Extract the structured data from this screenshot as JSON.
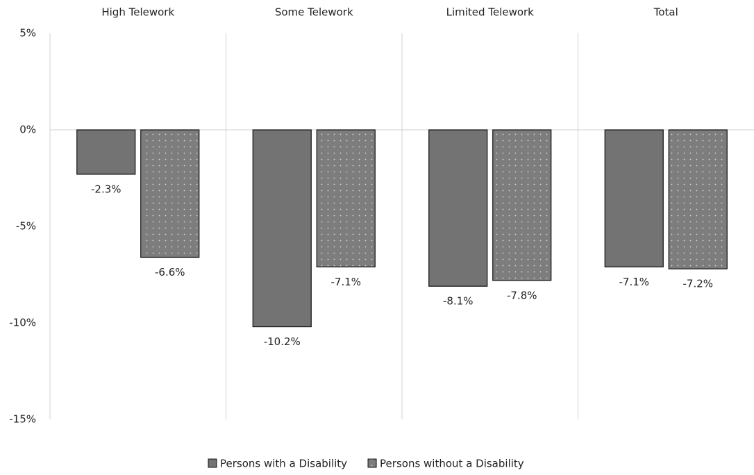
{
  "chart_data": {
    "type": "bar",
    "categories": [
      "High Telework",
      "Some Telework",
      "Limited Telework",
      "Total"
    ],
    "series": [
      {
        "name": "Persons with a Disability",
        "color": "#737373",
        "values": [
          -2.3,
          -10.2,
          -8.1,
          -7.1
        ],
        "value_labels": [
          "-2.3%",
          "-10.2%",
          "-8.1%",
          "-7.1%"
        ]
      },
      {
        "name": "Persons without a Disability",
        "color": "#7d7d7d",
        "pattern": "dots",
        "values": [
          -6.6,
          -7.1,
          -7.8,
          -7.2
        ],
        "value_labels": [
          "-6.6%",
          "-7.1%",
          "-7.8%",
          "-7.2%"
        ]
      }
    ],
    "ylim": [
      -15,
      5
    ],
    "yticks": [
      {
        "value": 5,
        "label": "5%"
      },
      {
        "value": 0,
        "label": "0%"
      },
      {
        "value": -5,
        "label": "-5%"
      },
      {
        "value": -10,
        "label": "-10%"
      },
      {
        "value": -15,
        "label": "-15%"
      }
    ],
    "grid": false
  }
}
